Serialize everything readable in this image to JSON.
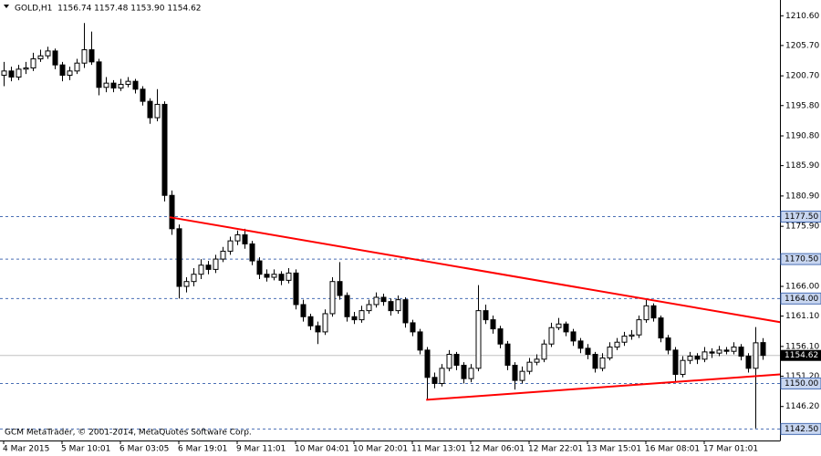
{
  "chart_data": {
    "type": "candlestick",
    "header": "GOLD,H1  1156.74 1157.48 1153.90 1154.62",
    "footer": "GCM MetaTrader, © 2001-2014, MetaQuotes Software Corp.",
    "categories": [
      "4 Mar 2015",
      null,
      null,
      null,
      null,
      null,
      null,
      null,
      "5 Mar 10:01",
      null,
      null,
      null,
      null,
      null,
      null,
      null,
      "6 Mar 03:05",
      null,
      null,
      null,
      null,
      null,
      null,
      null,
      "6 Mar 19:01",
      null,
      null,
      null,
      null,
      null,
      null,
      null,
      "9 Mar 11:01",
      null,
      null,
      null,
      null,
      null,
      null,
      null,
      "10 Mar 04:01",
      null,
      null,
      null,
      null,
      null,
      null,
      null,
      "10 Mar 20:01",
      null,
      null,
      null,
      null,
      null,
      null,
      null,
      "11 Mar 13:01",
      null,
      null,
      null,
      null,
      null,
      null,
      null,
      "12 Mar 06:01",
      null,
      null,
      null,
      null,
      null,
      null,
      null,
      "12 Mar 22:01",
      null,
      null,
      null,
      null,
      null,
      null,
      null,
      "13 Mar 15:01",
      null,
      null,
      null,
      null,
      null,
      null,
      null,
      "16 Mar 08:01",
      null,
      null,
      null,
      null,
      null,
      null,
      null,
      "17 Mar 01:01",
      null,
      null,
      null,
      null,
      null,
      null,
      null,
      null
    ],
    "candles": [
      [
        1200.8,
        1203.0,
        1199.0,
        1201.5
      ],
      [
        1201.5,
        1202.2,
        1199.8,
        1200.5
      ],
      [
        1200.5,
        1202.5,
        1200.0,
        1201.8
      ],
      [
        1201.8,
        1203.0,
        1201.0,
        1202.0
      ],
      [
        1202.0,
        1204.5,
        1201.5,
        1203.5
      ],
      [
        1203.5,
        1205.0,
        1203.0,
        1204.0
      ],
      [
        1204.0,
        1205.5,
        1203.5,
        1204.8
      ],
      [
        1204.8,
        1205.2,
        1201.8,
        1202.5
      ],
      [
        1202.5,
        1203.0,
        1199.8,
        1200.8
      ],
      [
        1200.8,
        1202.2,
        1200.0,
        1201.5
      ],
      [
        1201.5,
        1203.5,
        1201.0,
        1202.8
      ],
      [
        1202.8,
        1209.4,
        1202.0,
        1205.0
      ],
      [
        1205.0,
        1208.0,
        1202.5,
        1203.0
      ],
      [
        1203.0,
        1203.5,
        1197.5,
        1198.8
      ],
      [
        1198.8,
        1200.5,
        1198.0,
        1199.5
      ],
      [
        1199.5,
        1200.0,
        1198.0,
        1198.7
      ],
      [
        1198.7,
        1200.2,
        1198.2,
        1199.3
      ],
      [
        1199.3,
        1200.5,
        1198.8,
        1199.8
      ],
      [
        1199.8,
        1200.2,
        1197.8,
        1198.5
      ],
      [
        1198.5,
        1199.0,
        1195.8,
        1196.5
      ],
      [
        1196.5,
        1197.0,
        1192.8,
        1193.8
      ],
      [
        1193.8,
        1198.5,
        1193.2,
        1196.0
      ],
      [
        1196.0,
        1196.5,
        1180.0,
        1181.0
      ],
      [
        1181.0,
        1181.8,
        1174.5,
        1175.5
      ],
      [
        1175.5,
        1176.2,
        1164.0,
        1166.0
      ],
      [
        1166.0,
        1167.5,
        1165.0,
        1166.8
      ],
      [
        1166.8,
        1169.0,
        1166.0,
        1168.0
      ],
      [
        1168.0,
        1170.5,
        1167.2,
        1169.5
      ],
      [
        1169.5,
        1170.2,
        1168.0,
        1168.8
      ],
      [
        1168.8,
        1171.2,
        1168.2,
        1170.5
      ],
      [
        1170.5,
        1172.5,
        1170.0,
        1171.8
      ],
      [
        1171.8,
        1174.2,
        1171.2,
        1173.5
      ],
      [
        1173.5,
        1175.2,
        1172.8,
        1174.5
      ],
      [
        1174.5,
        1175.5,
        1172.2,
        1173.0
      ],
      [
        1173.0,
        1173.5,
        1169.5,
        1170.2
      ],
      [
        1170.2,
        1170.8,
        1167.2,
        1168.0
      ],
      [
        1168.0,
        1168.8,
        1166.8,
        1167.5
      ],
      [
        1167.5,
        1168.8,
        1167.0,
        1168.0
      ],
      [
        1168.0,
        1168.5,
        1166.2,
        1167.0
      ],
      [
        1167.0,
        1169.0,
        1166.5,
        1168.2
      ],
      [
        1168.2,
        1168.8,
        1162.2,
        1163.0
      ],
      [
        1163.0,
        1163.8,
        1160.2,
        1161.0
      ],
      [
        1161.0,
        1161.5,
        1158.8,
        1159.5
      ],
      [
        1159.5,
        1160.2,
        1156.5,
        1158.5
      ],
      [
        1158.5,
        1162.2,
        1158.0,
        1161.5
      ],
      [
        1161.5,
        1167.5,
        1161.0,
        1166.8
      ],
      [
        1166.8,
        1170.0,
        1163.8,
        1164.5
      ],
      [
        1164.5,
        1165.0,
        1160.2,
        1161.0
      ],
      [
        1161.0,
        1161.8,
        1159.8,
        1160.5
      ],
      [
        1160.5,
        1162.8,
        1160.0,
        1162.0
      ],
      [
        1162.0,
        1163.8,
        1161.5,
        1163.0
      ],
      [
        1163.0,
        1165.0,
        1162.5,
        1164.2
      ],
      [
        1164.2,
        1164.8,
        1162.8,
        1163.5
      ],
      [
        1163.5,
        1164.0,
        1161.2,
        1162.0
      ],
      [
        1162.0,
        1164.5,
        1161.5,
        1163.8
      ],
      [
        1163.8,
        1164.2,
        1159.2,
        1160.0
      ],
      [
        1160.0,
        1160.5,
        1157.8,
        1158.5
      ],
      [
        1158.5,
        1159.0,
        1154.8,
        1155.5
      ],
      [
        1155.5,
        1156.0,
        1147.3,
        1151.0
      ],
      [
        1151.0,
        1151.8,
        1149.2,
        1150.0
      ],
      [
        1150.0,
        1153.2,
        1149.5,
        1152.5
      ],
      [
        1152.5,
        1155.5,
        1152.0,
        1154.8
      ],
      [
        1154.8,
        1155.2,
        1152.2,
        1153.0
      ],
      [
        1153.0,
        1153.5,
        1150.0,
        1150.8
      ],
      [
        1150.8,
        1153.2,
        1150.2,
        1152.5
      ],
      [
        1152.5,
        1166.2,
        1152.0,
        1162.0
      ],
      [
        1162.0,
        1163.0,
        1159.8,
        1160.5
      ],
      [
        1160.5,
        1161.2,
        1158.2,
        1159.0
      ],
      [
        1159.0,
        1159.5,
        1155.8,
        1156.5
      ],
      [
        1156.5,
        1157.0,
        1152.2,
        1153.0
      ],
      [
        1153.0,
        1153.5,
        1149.0,
        1150.5
      ],
      [
        1150.5,
        1152.8,
        1150.0,
        1152.0
      ],
      [
        1152.0,
        1154.2,
        1151.5,
        1153.5
      ],
      [
        1153.5,
        1154.8,
        1153.0,
        1154.0
      ],
      [
        1154.0,
        1157.2,
        1153.5,
        1156.5
      ],
      [
        1156.5,
        1160.0,
        1156.0,
        1159.2
      ],
      [
        1159.2,
        1160.8,
        1158.8,
        1159.8
      ],
      [
        1159.8,
        1160.2,
        1157.8,
        1158.5
      ],
      [
        1158.5,
        1159.0,
        1156.2,
        1157.0
      ],
      [
        1157.0,
        1157.5,
        1155.0,
        1155.8
      ],
      [
        1155.8,
        1156.5,
        1154.0,
        1154.8
      ],
      [
        1154.8,
        1155.2,
        1151.8,
        1152.5
      ],
      [
        1152.5,
        1155.0,
        1152.0,
        1154.2
      ],
      [
        1154.2,
        1156.8,
        1153.8,
        1156.0
      ],
      [
        1156.0,
        1157.5,
        1155.5,
        1156.8
      ],
      [
        1156.8,
        1158.5,
        1156.2,
        1157.8
      ],
      [
        1157.8,
        1158.8,
        1157.2,
        1158.0
      ],
      [
        1158.0,
        1161.2,
        1157.5,
        1160.5
      ],
      [
        1160.5,
        1163.8,
        1160.0,
        1162.8
      ],
      [
        1162.8,
        1163.2,
        1160.2,
        1160.8
      ],
      [
        1160.8,
        1161.2,
        1156.8,
        1157.5
      ],
      [
        1157.5,
        1158.0,
        1154.8,
        1155.5
      ],
      [
        1155.5,
        1156.0,
        1150.2,
        1151.5
      ],
      [
        1151.5,
        1154.5,
        1151.0,
        1153.8
      ],
      [
        1153.8,
        1155.2,
        1153.2,
        1154.5
      ],
      [
        1154.5,
        1155.0,
        1153.2,
        1154.0
      ],
      [
        1154.0,
        1156.0,
        1153.5,
        1155.2
      ],
      [
        1155.2,
        1155.8,
        1154.2,
        1155.0
      ],
      [
        1155.0,
        1156.2,
        1154.5,
        1155.5
      ],
      [
        1155.5,
        1156.0,
        1154.8,
        1155.3
      ],
      [
        1155.3,
        1156.8,
        1154.8,
        1156.0
      ],
      [
        1156.0,
        1156.5,
        1153.8,
        1154.5
      ],
      [
        1154.5,
        1155.0,
        1151.8,
        1152.5
      ],
      [
        1152.5,
        1159.3,
        1142.6,
        1156.7
      ],
      [
        1156.74,
        1157.48,
        1153.9,
        1154.62
      ]
    ],
    "ylim": [
      1140.6,
      1213.2
    ],
    "yticks": [
      {
        "value": 1210.6,
        "label": "1210.60"
      },
      {
        "value": 1205.7,
        "label": "1205.70"
      },
      {
        "value": 1200.7,
        "label": "1200.70"
      },
      {
        "value": 1195.8,
        "label": "1195.80"
      },
      {
        "value": 1190.8,
        "label": "1190.80"
      },
      {
        "value": 1185.9,
        "label": "1185.90"
      },
      {
        "value": 1180.9,
        "label": "1180.90"
      },
      {
        "value": 1175.9,
        "label": "1175.90"
      },
      {
        "value": 1166.0,
        "label": "1166.00"
      },
      {
        "value": 1161.1,
        "label": "1161.10"
      },
      {
        "value": 1156.1,
        "label": "1156.10"
      },
      {
        "value": 1151.2,
        "label": "1151.20"
      },
      {
        "value": 1146.2,
        "label": "1146.20"
      }
    ],
    "levels": [
      {
        "value": 1177.5,
        "label": "1177.50"
      },
      {
        "value": 1170.5,
        "label": "1170.50"
      },
      {
        "value": 1164.0,
        "label": "1164.00"
      },
      {
        "value": 1150.0,
        "label": "1150.00"
      },
      {
        "value": 1142.5,
        "label": "1142.50"
      }
    ],
    "current_price": 1154.62,
    "trendlines": [
      {
        "x": [
          22.75,
          106.4
        ],
        "y": [
          1177.4,
          1160.1
        ],
        "color": "#ff0000"
      },
      {
        "x": [
          57.9,
          106.4
        ],
        "y": [
          1147.3,
          1151.5
        ],
        "color": "#ff0000"
      }
    ],
    "candle_color": "#000000",
    "level_color": "#4a6fb5"
  }
}
